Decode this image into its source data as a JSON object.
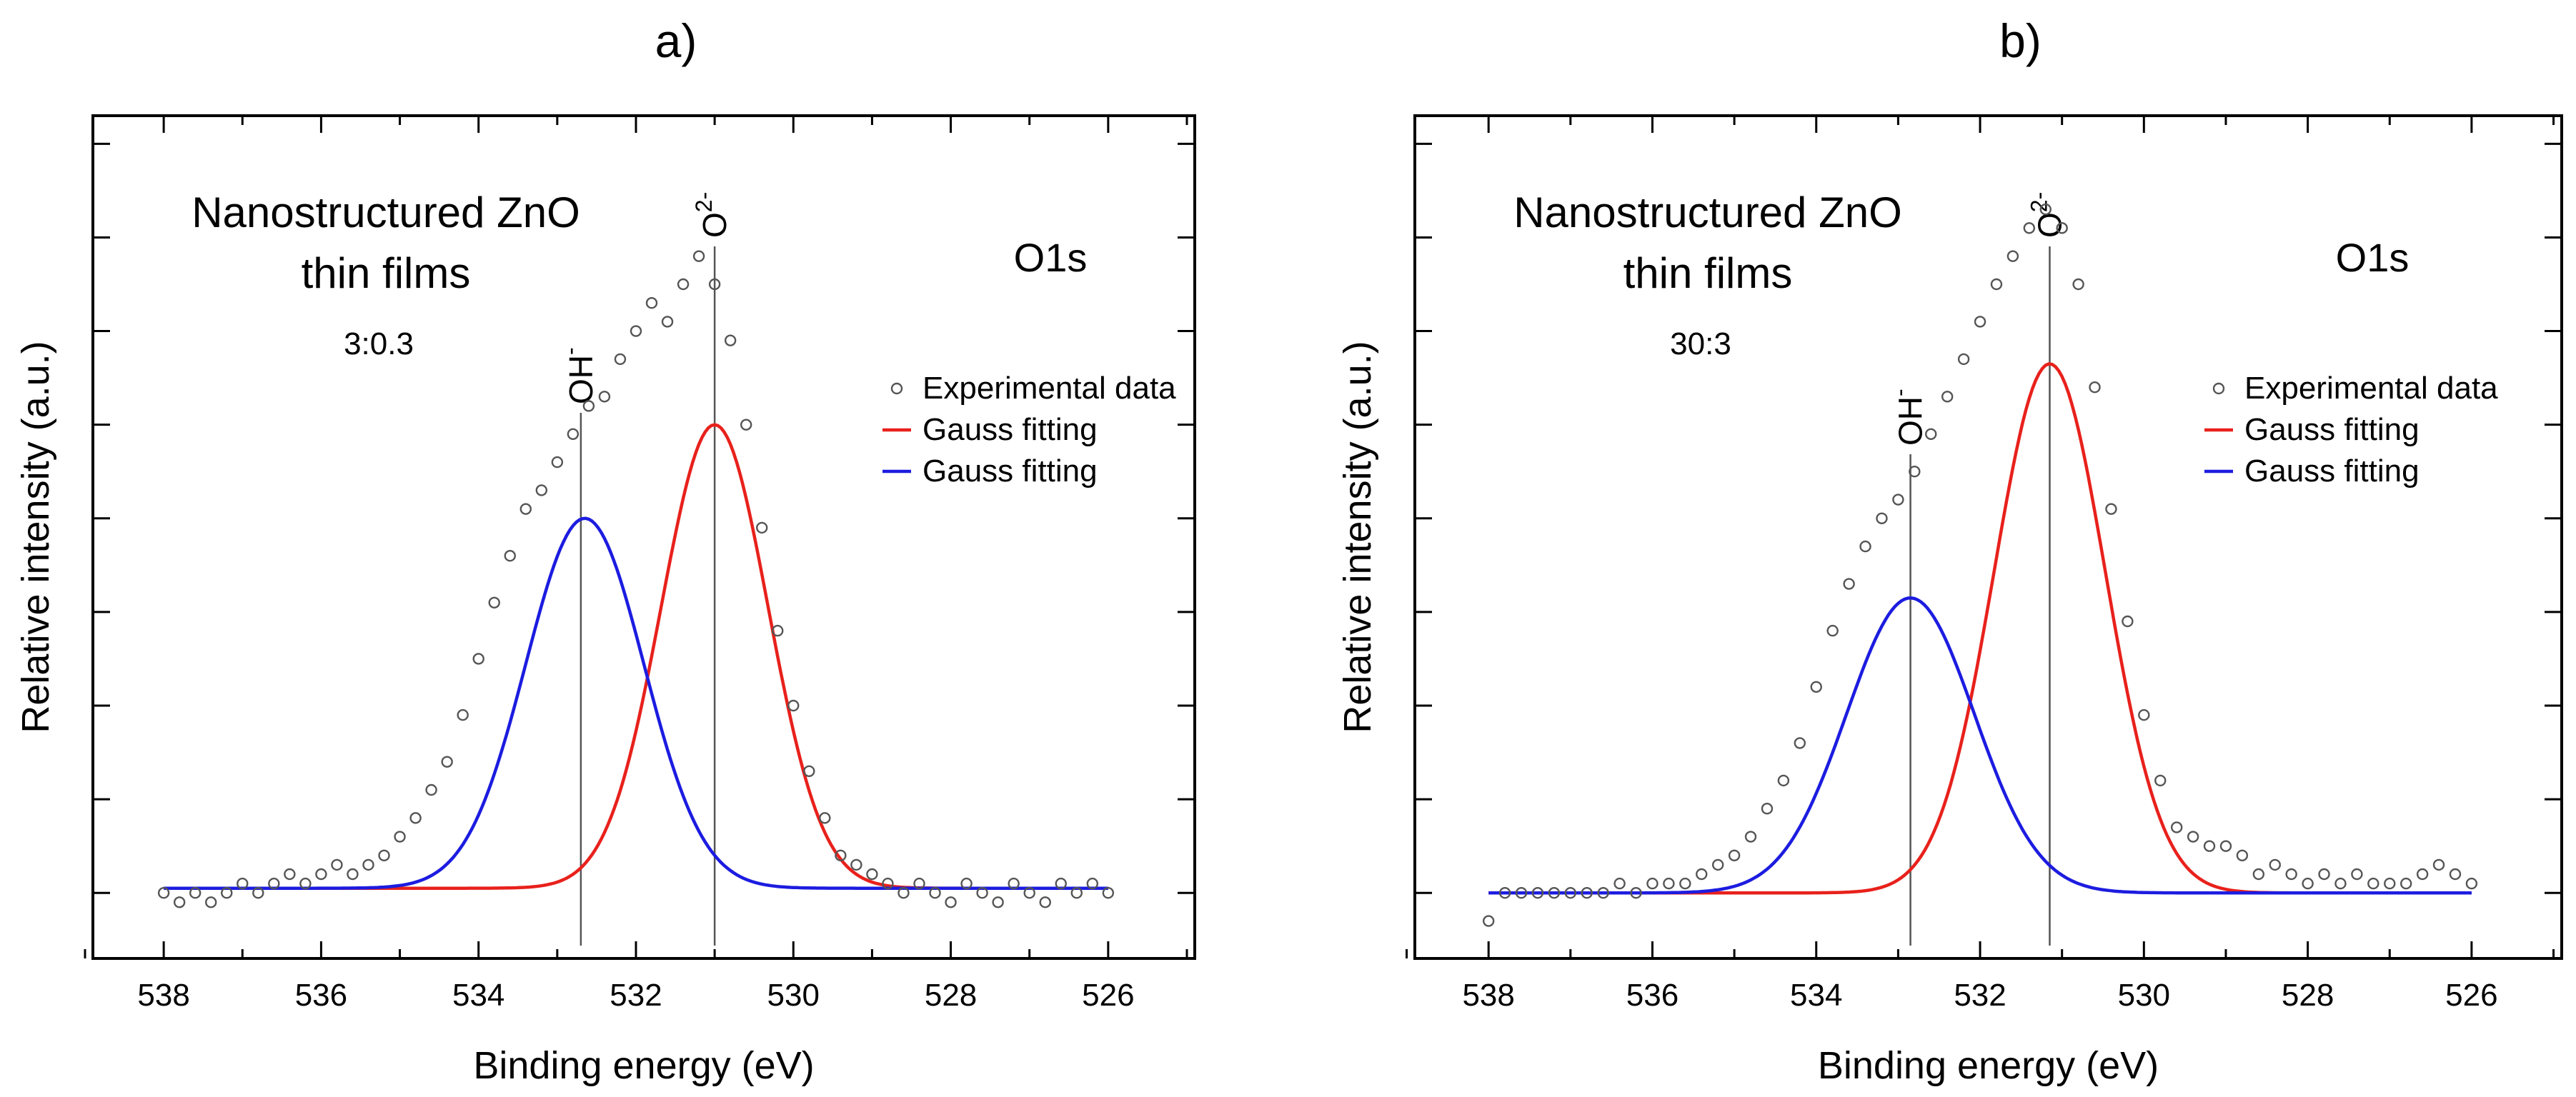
{
  "chart_data": [
    {
      "type": "scatter+line",
      "panel_label": "a)",
      "title": "Nanostructured ZnO",
      "title_line2": "thin films",
      "sample": "3:0.3",
      "region": "O1s",
      "xlabel": "Binding energy (eV)",
      "ylabel": "Relative intensity (a.u.)",
      "xlim": [
        538.9,
        524.9
      ],
      "ylim": [
        -0.7,
        8.3
      ],
      "x_ticks": [
        538,
        536,
        534,
        532,
        530,
        528,
        526
      ],
      "x_tick_labels": [
        "538",
        "536",
        "534",
        "532",
        "530",
        "528",
        "526"
      ],
      "y_tick_values": [
        0,
        1,
        2,
        3,
        4,
        5,
        6,
        7,
        8
      ],
      "y_tick_labels": [],
      "baseline": 0.05,
      "peak_markers": [
        {
          "label": "OH",
          "sup": "-",
          "x": 532.7
        },
        {
          "label": "O",
          "sup": "2-",
          "x": 531.0
        }
      ],
      "legend": [
        {
          "label": "Experimental data",
          "marker": "circle",
          "color": "#555555"
        },
        {
          "label": "Gauss fitting",
          "marker": "line",
          "color": "#e8211c"
        },
        {
          "label": "Gauss fitting",
          "marker": "line",
          "color": "#1c1ce0"
        }
      ],
      "series": [
        {
          "name": "Experimental data",
          "kind": "scatter",
          "x": [
            538.0,
            537.8,
            537.6,
            537.4,
            537.2,
            537.0,
            536.8,
            536.6,
            536.4,
            536.2,
            536.0,
            535.8,
            535.6,
            535.4,
            535.2,
            535.0,
            534.8,
            534.6,
            534.4,
            534.2,
            534.0,
            533.8,
            533.6,
            533.4,
            533.2,
            533.0,
            532.8,
            532.6,
            532.4,
            532.2,
            532.0,
            531.8,
            531.6,
            531.4,
            531.2,
            531.0,
            530.8,
            530.6,
            530.4,
            530.2,
            530.0,
            529.8,
            529.6,
            529.4,
            529.2,
            529.0,
            528.8,
            528.6,
            528.4,
            528.2,
            528.0,
            527.8,
            527.6,
            527.4,
            527.2,
            527.0,
            526.8,
            526.6,
            526.4,
            526.2,
            526.0
          ],
          "y": [
            0.0,
            -0.1,
            0.0,
            -0.1,
            0.0,
            0.1,
            0.0,
            0.1,
            0.2,
            0.1,
            0.2,
            0.3,
            0.2,
            0.3,
            0.4,
            0.6,
            0.8,
            1.1,
            1.4,
            1.9,
            2.5,
            3.1,
            3.6,
            4.1,
            4.3,
            4.6,
            4.9,
            5.2,
            5.3,
            5.7,
            6.0,
            6.3,
            6.1,
            6.5,
            6.8,
            6.5,
            5.9,
            5.0,
            3.9,
            2.8,
            2.0,
            1.3,
            0.8,
            0.4,
            0.3,
            0.2,
            0.1,
            0.0,
            0.1,
            0.0,
            -0.1,
            0.1,
            0.0,
            -0.1,
            0.1,
            0.0,
            -0.1,
            0.1,
            0.0,
            0.1,
            0.0
          ]
        },
        {
          "name": "Gauss fitting",
          "kind": "gauss",
          "color": "#e8211c",
          "center": 531.0,
          "amplitude": 4.95,
          "sigma": 0.68
        },
        {
          "name": "Gauss fitting",
          "kind": "gauss",
          "color": "#1c1ce0",
          "center": 532.65,
          "amplitude": 3.95,
          "sigma": 0.75
        }
      ]
    },
    {
      "type": "scatter+line",
      "panel_label": "b)",
      "title": "Nanostructured ZnO",
      "title_line2": "thin films",
      "sample": "30:3",
      "region": "O1s",
      "xlabel": "Binding energy (eV)",
      "ylabel": "Relative intensity (a.u.)",
      "xlim": [
        538.9,
        524.9
      ],
      "ylim": [
        -0.7,
        8.3
      ],
      "x_ticks": [
        538,
        536,
        534,
        532,
        530,
        528,
        526
      ],
      "x_tick_labels": [
        "538",
        "536",
        "534",
        "532",
        "530",
        "528",
        "526"
      ],
      "y_tick_values": [
        0,
        1,
        2,
        3,
        4,
        5,
        6,
        7,
        8
      ],
      "y_tick_labels": [],
      "baseline": 0.0,
      "peak_markers": [
        {
          "label": "OH",
          "sup": "-",
          "x": 532.85
        },
        {
          "label": "O",
          "sup": "2-",
          "x": 531.15
        }
      ],
      "legend": [
        {
          "label": "Experimental data",
          "marker": "circle",
          "color": "#555555"
        },
        {
          "label": "Gauss fitting",
          "marker": "line",
          "color": "#e8211c"
        },
        {
          "label": "Gauss fitting",
          "marker": "line",
          "color": "#1c1ce0"
        }
      ],
      "series": [
        {
          "name": "Experimental data",
          "kind": "scatter",
          "x": [
            538.0,
            537.8,
            537.6,
            537.4,
            537.2,
            537.0,
            536.8,
            536.6,
            536.4,
            536.2,
            536.0,
            535.8,
            535.6,
            535.4,
            535.2,
            535.0,
            534.8,
            534.6,
            534.4,
            534.2,
            534.0,
            533.8,
            533.6,
            533.4,
            533.2,
            533.0,
            532.8,
            532.6,
            532.4,
            532.2,
            532.0,
            531.8,
            531.6,
            531.4,
            531.2,
            531.0,
            530.8,
            530.6,
            530.4,
            530.2,
            530.0,
            529.8,
            529.6,
            529.4,
            529.2,
            529.0,
            528.8,
            528.6,
            528.4,
            528.2,
            528.0,
            527.8,
            527.6,
            527.4,
            527.2,
            527.0,
            526.8,
            526.6,
            526.4,
            526.2,
            526.0
          ],
          "y": [
            -0.3,
            0.0,
            0.0,
            0.0,
            0.0,
            0.0,
            0.0,
            0.0,
            0.1,
            0.0,
            0.1,
            0.1,
            0.1,
            0.2,
            0.3,
            0.4,
            0.6,
            0.9,
            1.2,
            1.6,
            2.2,
            2.8,
            3.3,
            3.7,
            4.0,
            4.2,
            4.5,
            4.9,
            5.3,
            5.7,
            6.1,
            6.5,
            6.8,
            7.1,
            7.3,
            7.1,
            6.5,
            5.4,
            4.1,
            2.9,
            1.9,
            1.2,
            0.7,
            0.6,
            0.5,
            0.5,
            0.4,
            0.2,
            0.3,
            0.2,
            0.1,
            0.2,
            0.1,
            0.2,
            0.1,
            0.1,
            0.1,
            0.2,
            0.3,
            0.2,
            0.1
          ]
        },
        {
          "name": "Gauss fitting",
          "kind": "gauss",
          "color": "#e8211c",
          "center": 531.15,
          "amplitude": 5.65,
          "sigma": 0.68
        },
        {
          "name": "Gauss fitting",
          "kind": "gauss",
          "color": "#1c1ce0",
          "center": 532.85,
          "amplitude": 3.15,
          "sigma": 0.78
        }
      ]
    }
  ]
}
